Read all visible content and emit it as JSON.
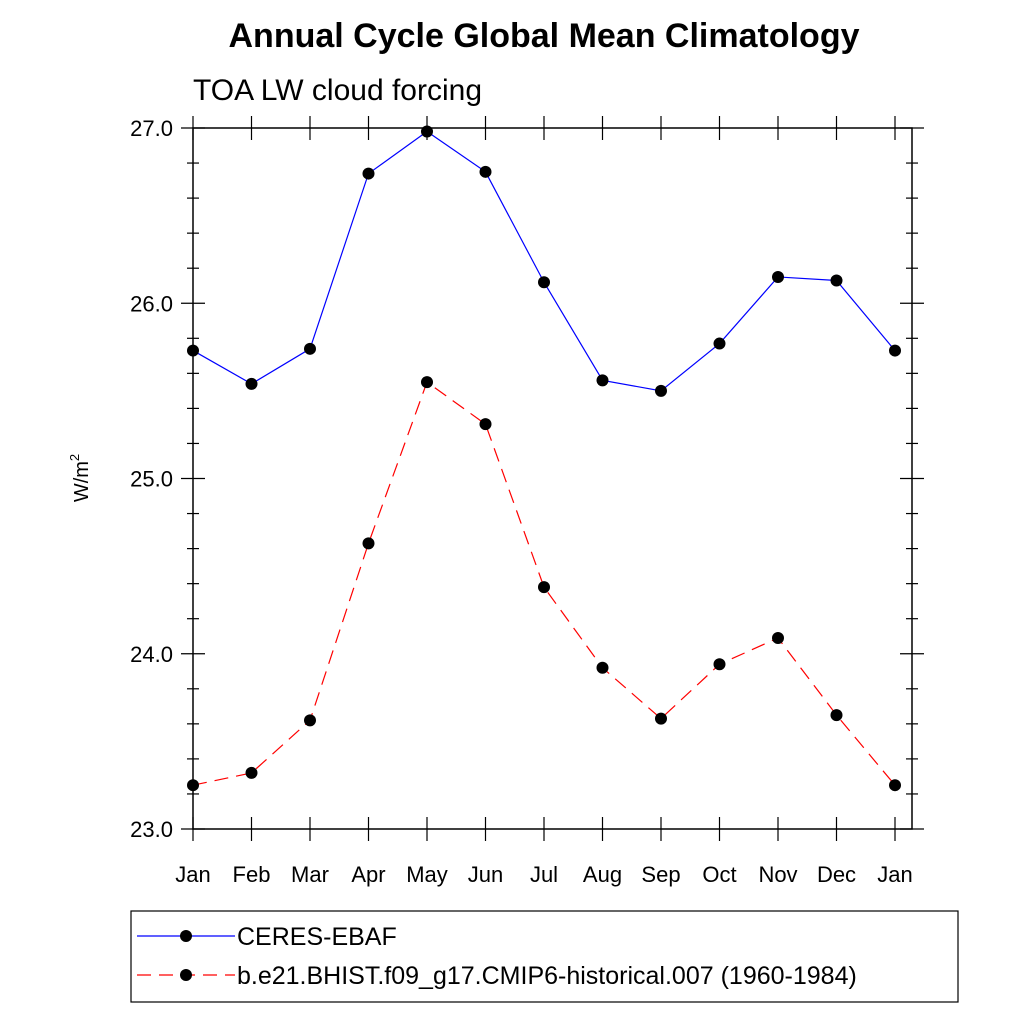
{
  "chart_data": {
    "type": "line",
    "title": "Annual Cycle Global Mean Climatology",
    "subtitle": "TOA LW cloud forcing",
    "ylabel_base": "W/m",
    "ylabel_sup": "2",
    "xlabel": "",
    "categories": [
      "Jan",
      "Feb",
      "Mar",
      "Apr",
      "May",
      "Jun",
      "Jul",
      "Aug",
      "Sep",
      "Oct",
      "Nov",
      "Dec",
      "Jan"
    ],
    "ylim": [
      23.0,
      27.0
    ],
    "yticks": [
      23.0,
      24.0,
      25.0,
      26.0,
      27.0
    ],
    "ytick_labels": [
      "23.0",
      "24.0",
      "25.0",
      "26.0",
      "27.0"
    ],
    "grid": false,
    "legend_position": "bottom",
    "series": [
      {
        "name": "CERES-EBAF",
        "color": "#0000ff",
        "line_style": "solid",
        "marker": "filled-circle",
        "values": [
          25.73,
          25.54,
          25.74,
          26.74,
          26.98,
          26.75,
          26.12,
          25.56,
          25.5,
          25.77,
          26.15,
          26.13,
          25.73
        ]
      },
      {
        "name": "b.e21.BHIST.f09_g17.CMIP6-historical.007 (1960-1984)",
        "color": "#ff0000",
        "line_style": "dashed",
        "marker": "filled-circle",
        "values": [
          23.25,
          23.32,
          23.62,
          24.63,
          25.55,
          25.31,
          24.38,
          23.92,
          23.63,
          23.94,
          24.09,
          23.65,
          23.25
        ]
      }
    ]
  }
}
